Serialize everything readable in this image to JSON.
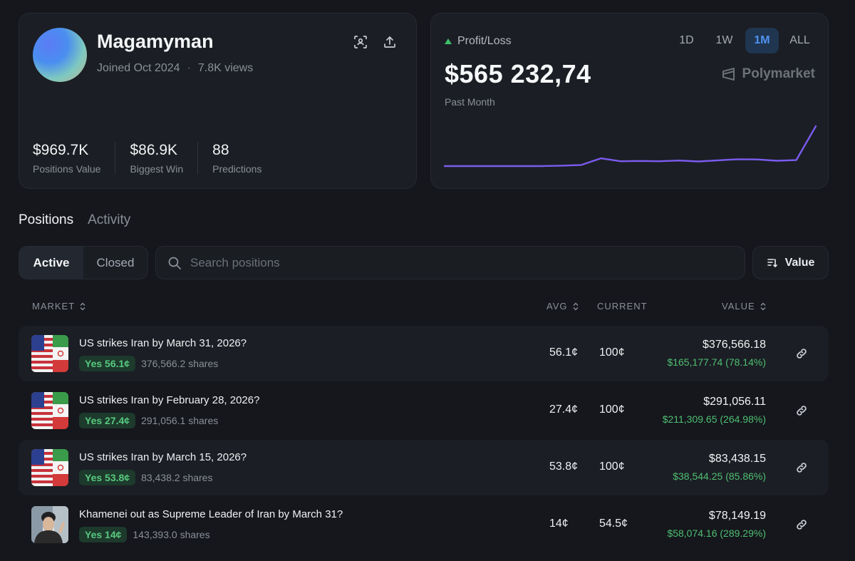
{
  "profile": {
    "name": "Magamyman",
    "joined": "Joined Oct 2024",
    "views": "7.8K views",
    "stats": [
      {
        "value": "$969.7K",
        "label": "Positions Value"
      },
      {
        "value": "$86.9K",
        "label": "Biggest Win"
      },
      {
        "value": "88",
        "label": "Predictions"
      }
    ]
  },
  "pnl": {
    "label": "Profit/Loss",
    "value": "$565 232,74",
    "period": "Past Month",
    "brand": "Polymarket",
    "timeframes": [
      "1D",
      "1W",
      "1M",
      "ALL"
    ],
    "active_timeframe": "1M"
  },
  "chart_data": {
    "type": "line",
    "series": [
      {
        "values": [
          0,
          0,
          0,
          0,
          0,
          0,
          0.2,
          0.5,
          3.5,
          2.2,
          2.3,
          2.2,
          2.5,
          2.1,
          2.6,
          3.1,
          3.0,
          2.4,
          2.7,
          18.0
        ]
      }
    ],
    "color": "#7b5cf0",
    "grid": false
  },
  "tabs": [
    "Positions",
    "Activity"
  ],
  "segments": [
    "Active",
    "Closed"
  ],
  "search": {
    "placeholder": "Search positions"
  },
  "sort": {
    "label": "Value"
  },
  "table": {
    "headers": {
      "market": "MARKET",
      "avg": "AVG",
      "current": "CURRENT",
      "value": "VALUE"
    },
    "rows": [
      {
        "title": "US strikes Iran by March 31, 2026?",
        "badge": "Yes 56.1¢",
        "shares": "376,566.2 shares",
        "avg": "56.1¢",
        "current": "100¢",
        "value": "$376,566.18",
        "pnl": "$165,177.74 (78.14%)",
        "thumb": "us-iran-flags"
      },
      {
        "title": "US strikes Iran by February 28, 2026?",
        "badge": "Yes 27.4¢",
        "shares": "291,056.1 shares",
        "avg": "27.4¢",
        "current": "100¢",
        "value": "$291,056.11",
        "pnl": "$211,309.65 (264.98%)",
        "thumb": "us-iran-flags"
      },
      {
        "title": "US strikes Iran by March 15, 2026?",
        "badge": "Yes 53.8¢",
        "shares": "83,438.2 shares",
        "avg": "53.8¢",
        "current": "100¢",
        "value": "$83,438.15",
        "pnl": "$38,544.25 (85.86%)",
        "thumb": "us-iran-flags"
      },
      {
        "title": "Khamenei out as Supreme Leader of Iran by March 31?",
        "badge": "Yes 14¢",
        "shares": "143,393.0 shares",
        "avg": "14¢",
        "current": "54.5¢",
        "value": "$78,149.19",
        "pnl": "$58,074.16 (289.29%)",
        "thumb": "portrait"
      }
    ]
  }
}
